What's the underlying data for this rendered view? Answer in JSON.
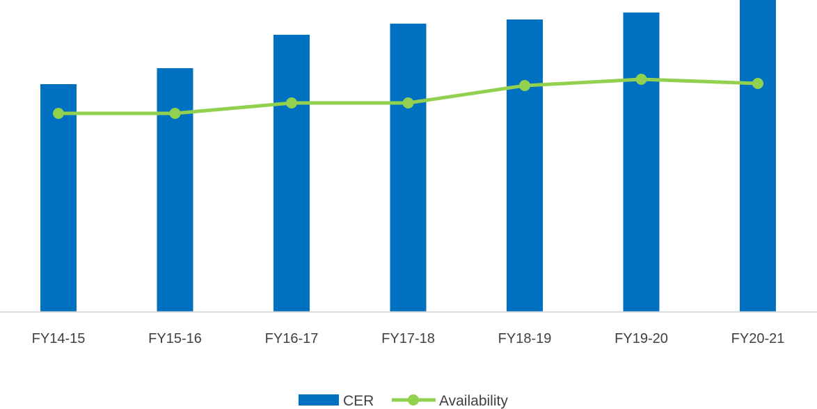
{
  "chart_data": {
    "type": "bar",
    "categories": [
      "FY14-15",
      "FY15-16",
      "FY16-17",
      "FY17-18",
      "FY18-19",
      "FY19-20",
      "FY20-21"
    ],
    "series": [
      {
        "name": "CER",
        "type": "bar",
        "color": "#0070C0",
        "values": [
          327,
          350,
          398,
          414,
          420,
          430,
          448
        ]
      },
      {
        "name": "Availability",
        "type": "line",
        "color": "#92D050",
        "values": [
          285,
          285,
          300,
          300,
          325,
          334,
          328
        ]
      }
    ],
    "ylim": [
      0,
      448
    ],
    "y_axis_shown": false,
    "grid": false,
    "legend": "bottom",
    "title": "",
    "xlabel": "",
    "ylabel": ""
  }
}
